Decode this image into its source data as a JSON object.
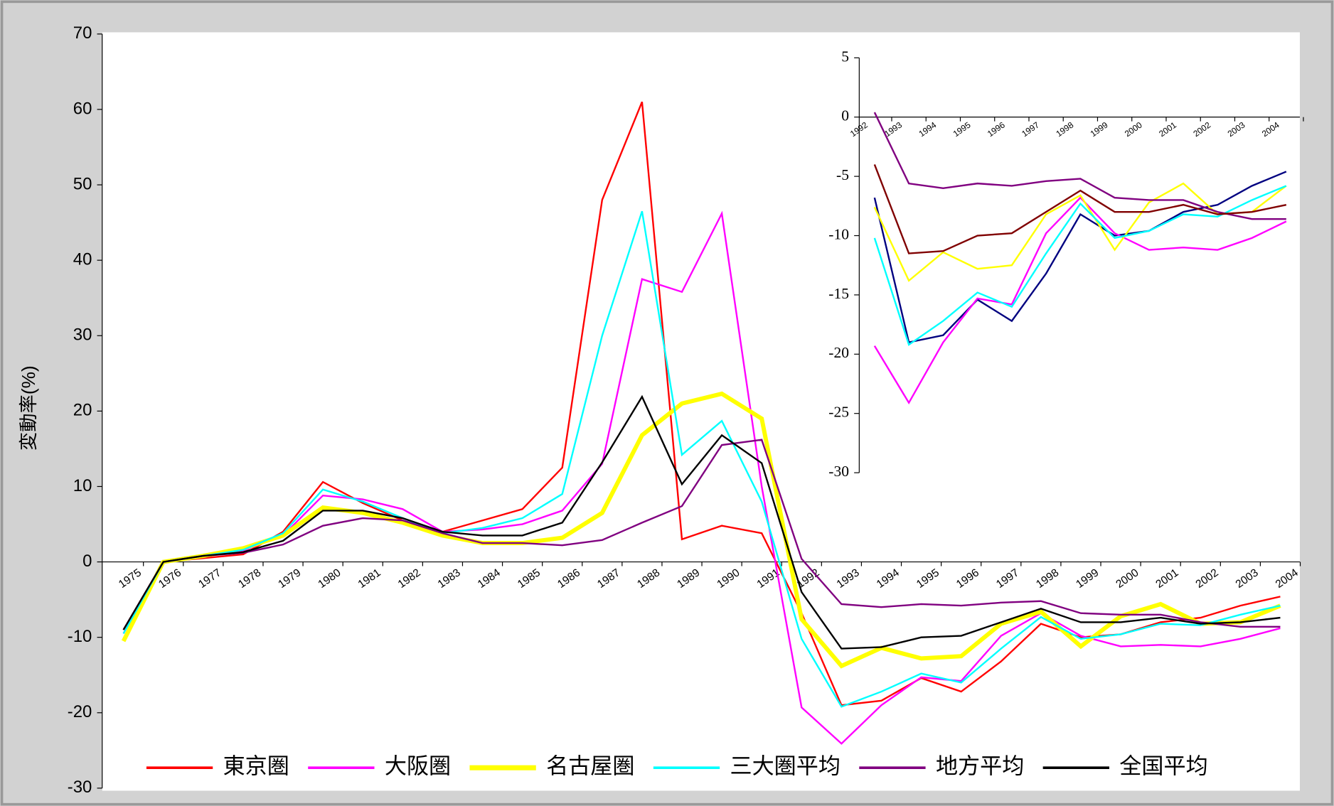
{
  "chart_data": [
    {
      "type": "line",
      "y_label": "変動率(%)",
      "categories": [
        "1975",
        "1976",
        "1977",
        "1978",
        "1979",
        "1980",
        "1981",
        "1982",
        "1983",
        "1984",
        "1985",
        "1986",
        "1987",
        "1988",
        "1989",
        "1990",
        "1991",
        "1992",
        "1993",
        "1994",
        "1995",
        "1996",
        "1997",
        "1998",
        "1999",
        "2000",
        "2001",
        "2002",
        "2003",
        "2004"
      ],
      "ylim": [
        -30,
        70
      ],
      "yticks": [
        -30,
        -20,
        -10,
        0,
        10,
        20,
        30,
        40,
        50,
        60,
        70
      ],
      "legend": "bottom",
      "series": [
        {
          "name": "東京圏",
          "color": "#ff0000",
          "width": 2,
          "values": [
            -9,
            0,
            0.5,
            1,
            4,
            10.6,
            7.8,
            5.5,
            4,
            5.5,
            7,
            12.5,
            48,
            61,
            3,
            4.8,
            3.8,
            -6.8,
            -19,
            -18.4,
            -15.4,
            -17.2,
            -13.2,
            -8.2,
            -10,
            -9.6,
            -8,
            -7.4,
            -5.8,
            -4.6
          ]
        },
        {
          "name": "大阪圏",
          "color": "#ff00ff",
          "width": 2,
          "values": [
            -9.5,
            0,
            0.8,
            1.5,
            3.5,
            8.8,
            8.3,
            7,
            4,
            4.3,
            5,
            6.8,
            13,
            37.5,
            35.8,
            46.2,
            10,
            -19.3,
            -24.1,
            -19,
            -15.3,
            -15.8,
            -9.8,
            -6.8,
            -9.8,
            -11.2,
            -11,
            -11.2,
            -10.2,
            -8.8
          ]
        },
        {
          "name": "名古屋圏",
          "color": "#ffff00",
          "width": 5,
          "values": [
            -10.5,
            0,
            0.8,
            1.8,
            3.5,
            7.2,
            6.5,
            5.2,
            3.5,
            2.5,
            2.5,
            3.2,
            6.5,
            16.8,
            21,
            22.3,
            19,
            -7.6,
            -13.8,
            -11.4,
            -12.8,
            -12.5,
            -8.2,
            -6.6,
            -11.2,
            -7.2,
            -5.6,
            -8.2,
            -8,
            -5.8
          ]
        },
        {
          "name": "三大圏平均",
          "color": "#00ffff",
          "width": 2,
          "values": [
            -9.5,
            0,
            0.8,
            1.6,
            3.8,
            9.6,
            8,
            5.8,
            3.8,
            4.5,
            5.8,
            9,
            30,
            46.5,
            14.2,
            18.7,
            8,
            -10.2,
            -19.2,
            -17.2,
            -14.8,
            -16,
            -11.5,
            -7.3,
            -10.2,
            -9.6,
            -8.2,
            -8.4,
            -7,
            -5.8
          ]
        },
        {
          "name": "地方平均",
          "color": "#800080",
          "width": 2,
          "values": [
            -9,
            0,
            0.8,
            1.2,
            2.3,
            4.8,
            5.8,
            5.5,
            3.8,
            2.5,
            2.5,
            2.2,
            2.9,
            5.2,
            7.4,
            15.5,
            16.2,
            0.4,
            -5.6,
            -6,
            -5.6,
            -5.8,
            -5.4,
            -5.2,
            -6.8,
            -7,
            -7,
            -8,
            -8.6,
            -8.6
          ]
        },
        {
          "name": "全国平均",
          "color": "#000000",
          "width": 2,
          "values": [
            -9,
            0,
            0.8,
            1.3,
            2.8,
            6.8,
            6.8,
            5.8,
            4,
            3.5,
            3.5,
            5.2,
            13.2,
            21.9,
            10.3,
            16.8,
            13.1,
            -4,
            -11.5,
            -11.3,
            -10,
            -9.8,
            -8,
            -6.2,
            -8,
            -8,
            -7.4,
            -8.2,
            -8,
            -7.4
          ]
        }
      ]
    },
    {
      "type": "line",
      "categories": [
        "1992",
        "1993",
        "1994",
        "1995",
        "1996",
        "1997",
        "1998",
        "1999",
        "2000",
        "2001",
        "2002",
        "2003",
        "2004"
      ],
      "ylim": [
        -30,
        5
      ],
      "yticks": [
        -30,
        -25,
        -20,
        -15,
        -10,
        -5,
        0,
        5
      ],
      "series": [
        {
          "color": "#000080",
          "width": 2,
          "values": [
            -6.8,
            -19,
            -18.4,
            -15.4,
            -17.2,
            -13.2,
            -8.2,
            -10,
            -9.6,
            -8,
            -7.4,
            -5.8,
            -4.6
          ]
        },
        {
          "color": "#ff00ff",
          "width": 2,
          "values": [
            -19.3,
            -24.1,
            -19,
            -15.3,
            -15.8,
            -9.8,
            -6.8,
            -9.8,
            -11.2,
            -11,
            -11.2,
            -10.2,
            -8.8
          ]
        },
        {
          "color": "#ffff00",
          "width": 2,
          "values": [
            -7.6,
            -13.8,
            -11.4,
            -12.8,
            -12.5,
            -8.2,
            -6.6,
            -11.2,
            -7.2,
            -5.6,
            -8.2,
            -8,
            -5.8
          ]
        },
        {
          "color": "#00ffff",
          "width": 2,
          "values": [
            -10.2,
            -19.2,
            -17.2,
            -14.8,
            -16,
            -11.5,
            -7.3,
            -10.2,
            -9.6,
            -8.2,
            -8.4,
            -7,
            -5.8
          ]
        },
        {
          "color": "#800080",
          "width": 2,
          "values": [
            0.4,
            -5.6,
            -6,
            -5.6,
            -5.8,
            -5.4,
            -5.2,
            -6.8,
            -7,
            -7,
            -8,
            -8.6,
            -8.6
          ]
        },
        {
          "color": "#800000",
          "width": 2,
          "values": [
            -4,
            -11.5,
            -11.3,
            -10,
            -9.8,
            -8,
            -6.2,
            -8,
            -8,
            -7.4,
            -8.2,
            -8,
            -7.4
          ]
        }
      ]
    }
  ]
}
